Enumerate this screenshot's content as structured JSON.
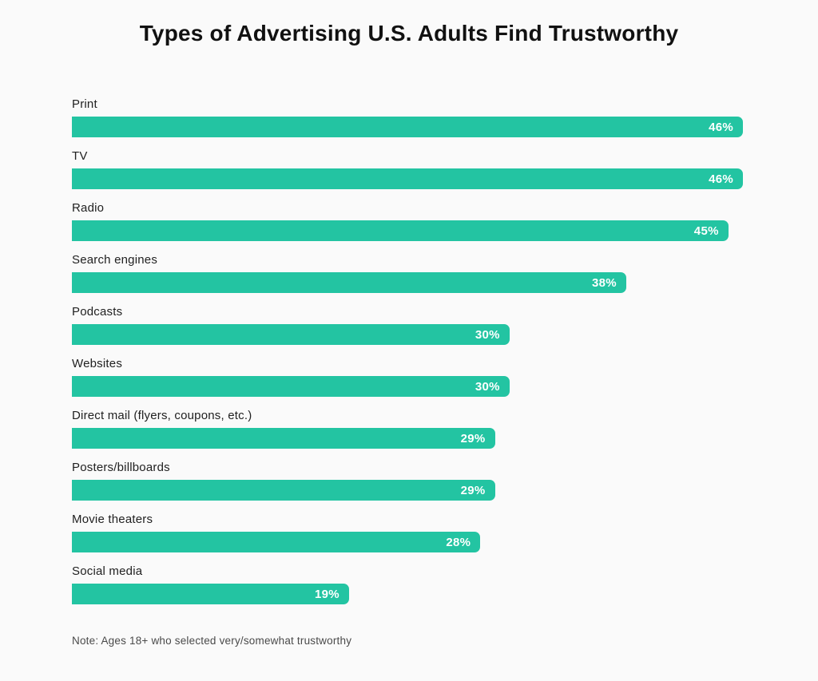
{
  "chart_data": {
    "type": "bar",
    "orientation": "horizontal",
    "title": "Types of Advertising U.S. Adults Find Trustworthy",
    "categories": [
      "Print",
      "TV",
      "Radio",
      "Search engines",
      "Podcasts",
      "Websites",
      "Direct mail (flyers, coupons, etc.)",
      "Posters/billboards",
      "Movie theaters",
      "Social media"
    ],
    "values": [
      46,
      46,
      45,
      38,
      30,
      30,
      29,
      29,
      28,
      19
    ],
    "unit": "%",
    "xlim": [
      0,
      46
    ],
    "grid": false,
    "legend": false,
    "bar_color": "#23c4a2",
    "value_label_color": "#ffffff",
    "note": "Note: Ages 18+ who selected very/somewhat trustworthy"
  },
  "page": {
    "background_color": "#fafafa",
    "title_color": "#111111",
    "category_label_color": "#212121",
    "note_color": "#4a4a4a"
  }
}
